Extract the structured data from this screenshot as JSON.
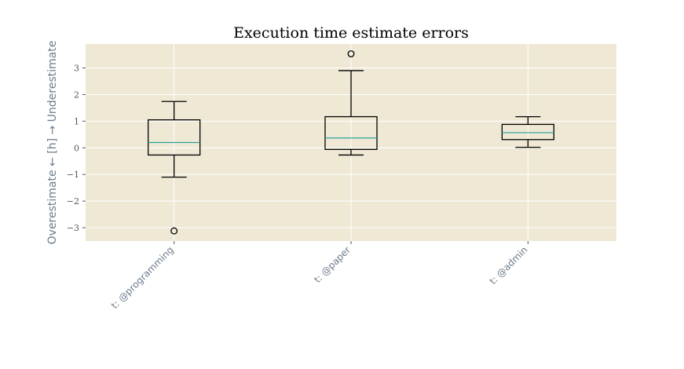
{
  "chart_data": {
    "type": "box",
    "title": "Execution time estimate errors",
    "ylabel": "Overestimate ← [h] → Underestimate",
    "xlabel": "",
    "ylim": [
      -3.5,
      3.9
    ],
    "yticks": [
      3,
      2,
      1,
      0,
      -1,
      -2,
      -3
    ],
    "ytick_labels": [
      "3",
      "2",
      "1",
      "0",
      "−1",
      "−2",
      "−3"
    ],
    "grid": true,
    "colors": {
      "plot_bg": "#eee8d5",
      "grid": "#ffffff",
      "box": "#000000",
      "median": "#2aa198"
    },
    "categories": [
      "t: @programming",
      "t: @paper",
      "t: @admin"
    ],
    "boxes": [
      {
        "whisker_low": -1.1,
        "q1": -0.27,
        "median": 0.2,
        "q3": 1.05,
        "whisker_high": 1.74,
        "outliers": [
          -3.12
        ]
      },
      {
        "whisker_low": -0.27,
        "q1": -0.06,
        "median": 0.37,
        "q3": 1.17,
        "whisker_high": 2.9,
        "outliers": [
          3.53
        ]
      },
      {
        "whisker_low": 0.02,
        "q1": 0.31,
        "median": 0.57,
        "q3": 0.88,
        "whisker_high": 1.17,
        "outliers": []
      }
    ]
  }
}
